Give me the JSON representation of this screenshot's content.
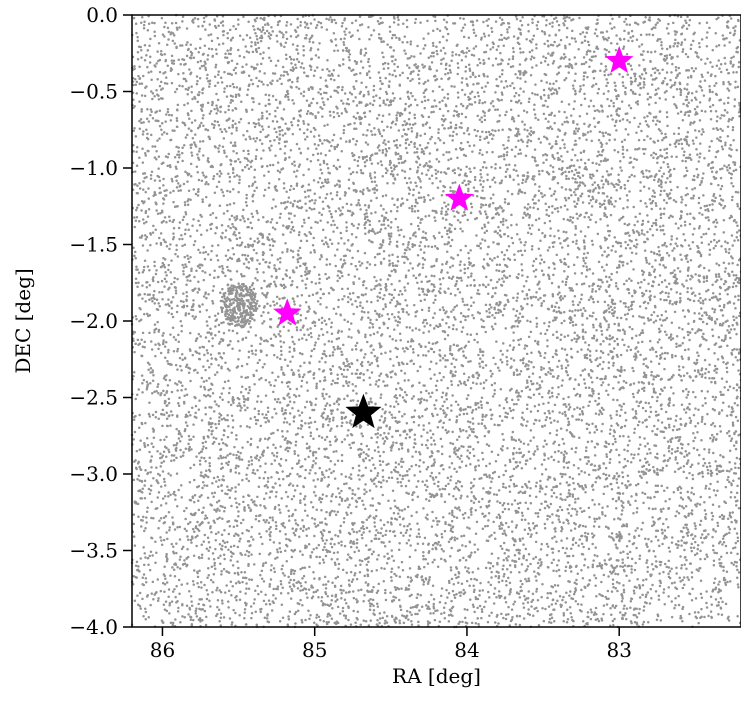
{
  "chart_data": {
    "type": "scatter",
    "title": "",
    "xlabel": "RA [deg]",
    "ylabel": "DEC [deg]",
    "xlim": [
      86.2,
      82.2
    ],
    "ylim": [
      -4.0,
      0.0
    ],
    "x_reversed": true,
    "grid": false,
    "legend": "none",
    "xticks": [
      86,
      85,
      84,
      83
    ],
    "xtick_labels": [
      "86",
      "85",
      "84",
      "83"
    ],
    "yticks": [
      0.0,
      -0.5,
      -1.0,
      -1.5,
      -2.0,
      -2.5,
      -3.0,
      -3.5,
      -4.0
    ],
    "ytick_labels": [
      "0.0",
      "−0.5",
      "−1.0",
      "−1.5",
      "−2.0",
      "−2.5",
      "−3.0",
      "−3.5",
      "−4.0"
    ],
    "background_points": {
      "description": "dense field of ~12000 small grey dots uniformly covering the plotted region, with a slight overdensity near RA 85.5, DEC -1.9",
      "color": "#808080",
      "ra_range": [
        82.2,
        86.2
      ],
      "dec_range": [
        -4.0,
        0.0
      ],
      "count": 12000
    },
    "markers": [
      {
        "marker": "star",
        "color": "#ff00ff",
        "ra": 83.0,
        "dec": -0.3
      },
      {
        "marker": "star",
        "color": "#ff00ff",
        "ra": 84.05,
        "dec": -1.2
      },
      {
        "marker": "star",
        "color": "#ff00ff",
        "ra": 85.18,
        "dec": -1.95
      },
      {
        "marker": "star",
        "color": "#000000",
        "ra": 84.68,
        "dec": -2.6
      }
    ]
  }
}
